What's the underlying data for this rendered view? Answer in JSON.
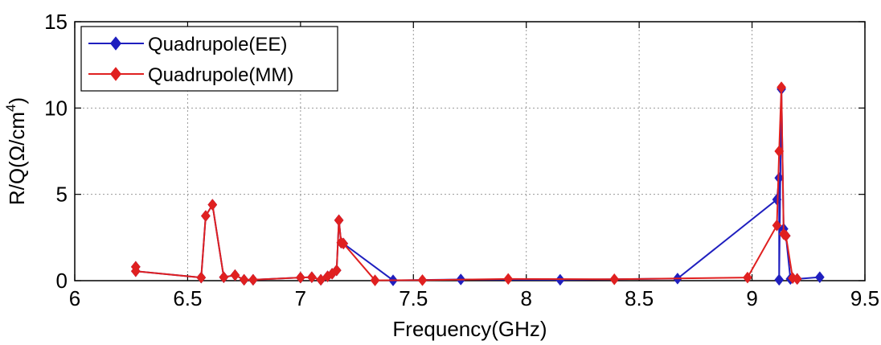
{
  "chart_data": {
    "type": "line",
    "xlabel": "Frequency(GHz)",
    "ylabel": "R/Q(Ω/cm",
    "ylabel_sup": "4",
    "ylabel_close": ")",
    "xlim": [
      6,
      9.5
    ],
    "ylim": [
      0,
      15
    ],
    "xticks": [
      6,
      6.5,
      7,
      7.5,
      8,
      8.5,
      9,
      9.5
    ],
    "xtick_labels": [
      "6",
      "6.5",
      "7",
      "7.5",
      "8",
      "8.5",
      "9",
      "9.5"
    ],
    "yticks": [
      0,
      5,
      10,
      15
    ],
    "ytick_labels": [
      "0",
      "5",
      "10",
      "15"
    ],
    "grid": true,
    "legend_position": "top-left",
    "series": [
      {
        "name": "Quadrupole(EE)",
        "color": "#1f1fbf",
        "marker": "diamond",
        "x": [
          6.27,
          6.27,
          6.56,
          6.58,
          6.61,
          6.66,
          6.71,
          6.75,
          6.79,
          7.0,
          7.05,
          7.09,
          7.12,
          7.14,
          7.16,
          7.17,
          7.18,
          7.19,
          7.41,
          7.71,
          8.15,
          8.67,
          9.11,
          9.12,
          9.12,
          9.13,
          9.14,
          9.15,
          9.17,
          9.2,
          9.3
        ],
        "y": [
          0.8,
          0.55,
          0.18,
          3.75,
          4.4,
          0.2,
          0.32,
          0.05,
          0.05,
          0.18,
          0.2,
          0.05,
          0.25,
          0.4,
          0.6,
          3.5,
          2.2,
          2.15,
          0.02,
          0.07,
          0.05,
          0.12,
          4.7,
          5.95,
          0.05,
          11.1,
          3.0,
          2.6,
          0.1,
          0.1,
          0.2
        ]
      },
      {
        "name": "Quadrupole(MM)",
        "color": "#e02020",
        "marker": "diamond",
        "x": [
          6.27,
          6.27,
          6.56,
          6.58,
          6.61,
          6.66,
          6.71,
          6.75,
          6.79,
          7.0,
          7.05,
          7.09,
          7.12,
          7.14,
          7.16,
          7.17,
          7.18,
          7.19,
          7.33,
          7.54,
          7.92,
          8.39,
          8.98,
          9.11,
          9.12,
          9.13,
          9.14,
          9.15,
          9.18,
          9.2
        ],
        "y": [
          0.8,
          0.55,
          0.18,
          3.75,
          4.4,
          0.2,
          0.32,
          0.05,
          0.05,
          0.18,
          0.2,
          0.05,
          0.25,
          0.4,
          0.6,
          3.5,
          2.2,
          2.15,
          0.02,
          0.03,
          0.1,
          0.08,
          0.18,
          3.2,
          7.5,
          11.2,
          2.7,
          2.6,
          0.15,
          0.1
        ]
      }
    ]
  }
}
